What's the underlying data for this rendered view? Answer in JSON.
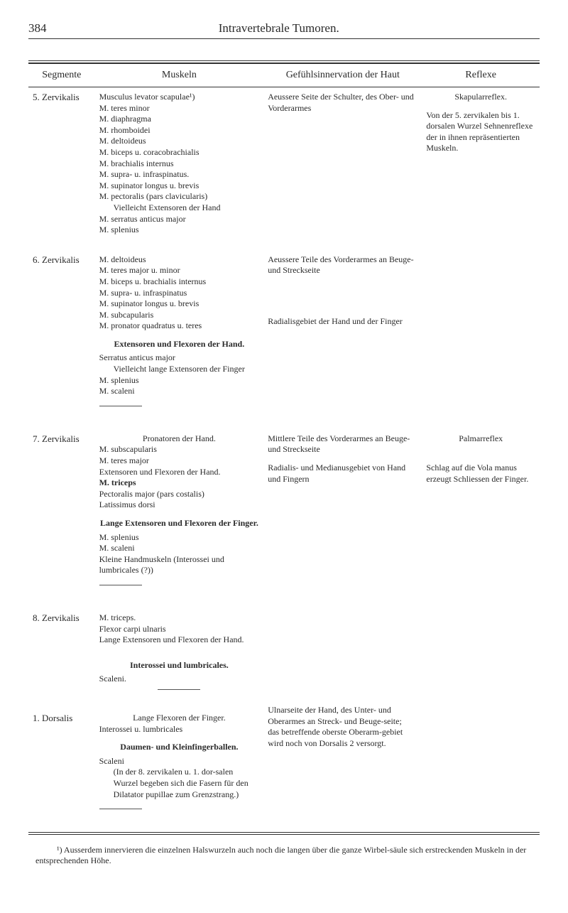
{
  "header": {
    "pageNumber": "384",
    "title": "Intravertebrale Tumoren."
  },
  "table": {
    "columns": [
      "Segmente",
      "Muskeln",
      "Gefühlsinnervation der Haut",
      "Reflexe"
    ],
    "rows": [
      {
        "segment": "5. Zervikalis",
        "muskeln": [
          {
            "type": "line",
            "text": "Musculus levator scapulae¹)"
          },
          {
            "type": "line",
            "text": "M. teres minor"
          },
          {
            "type": "line",
            "text": "M. diaphragma"
          },
          {
            "type": "line",
            "text": "M. rhomboidei"
          },
          {
            "type": "line",
            "text": "M. deltoideus"
          },
          {
            "type": "line",
            "text": "M. biceps u. coracobrachialis"
          },
          {
            "type": "line",
            "text": "M. brachialis internus"
          },
          {
            "type": "line",
            "text": "M. supra- u. infraspinatus."
          },
          {
            "type": "line",
            "text": "M. supinator longus u. brevis"
          },
          {
            "type": "line",
            "text": "M. pectoralis (pars clavicularis)"
          },
          {
            "type": "indent",
            "text": "Vielleicht Extensoren der Hand"
          },
          {
            "type": "line",
            "text": "M. serratus anticus major"
          },
          {
            "type": "line",
            "text": "M. splenius"
          }
        ],
        "haut": [
          {
            "type": "line",
            "text": "Aeussere Seite der Schulter, des Ober- und Vorderarmes"
          }
        ],
        "reflexe": [
          {
            "type": "center",
            "text": "Skapularreflex."
          },
          {
            "type": "spacer"
          },
          {
            "type": "line",
            "text": "Von der 5. zervikalen bis 1. dorsalen Wurzel Sehnenreflexe der in ihnen repräsentierten Muskeln."
          }
        ]
      },
      {
        "segment": "6. Zervikalis",
        "muskeln": [
          {
            "type": "line",
            "text": "M. deltoideus"
          },
          {
            "type": "line",
            "text": "M. teres major u. minor"
          },
          {
            "type": "line",
            "text": "M. biceps u. brachialis internus"
          },
          {
            "type": "line",
            "text": "M. supra- u. infraspinatus"
          },
          {
            "type": "line",
            "text": "M. supinator longus u. brevis"
          },
          {
            "type": "line",
            "text": "M. subcapularis"
          },
          {
            "type": "line",
            "text": "M. pronator quadratus u. teres"
          },
          {
            "type": "bold-heading",
            "text": "Extensoren und Flexoren der Hand."
          },
          {
            "type": "line",
            "text": "Serratus anticus major"
          },
          {
            "type": "indent",
            "text": "Vielleicht lange Extensoren der Finger"
          },
          {
            "type": "line",
            "text": "M. splenius"
          },
          {
            "type": "line",
            "text": "M. scaleni"
          },
          {
            "type": "rule"
          }
        ],
        "haut": [
          {
            "type": "line",
            "text": "Aeussere Teile des Vorderarmes an Beuge- und Streckseite"
          },
          {
            "type": "spacer3"
          },
          {
            "type": "line",
            "text": "Radialisgebiet der Hand und der Finger"
          }
        ],
        "reflexe": []
      },
      {
        "segment": "7. Zervikalis",
        "muskeln": [
          {
            "type": "center",
            "text": "Pronatoren der Hand."
          },
          {
            "type": "line",
            "text": "M. subscapularis"
          },
          {
            "type": "line",
            "text": "M. teres major"
          },
          {
            "type": "line",
            "text": "Extensoren und Flexoren der Hand."
          },
          {
            "type": "bold-line",
            "text": "M. triceps"
          },
          {
            "type": "line",
            "text": "Pectoralis major (pars costalis)"
          },
          {
            "type": "line",
            "text": "Latissimus dorsi"
          },
          {
            "type": "bold-heading",
            "text": "Lange Extensoren und Flexoren der Finger."
          },
          {
            "type": "line",
            "text": "M. splenius"
          },
          {
            "type": "line",
            "text": "M. scaleni"
          },
          {
            "type": "line",
            "text": "Kleine Handmuskeln (Interossei und lumbricales (?))"
          },
          {
            "type": "rule"
          }
        ],
        "haut": [
          {
            "type": "line",
            "text": "Mittlere Teile des Vorderarmes an Beuge- und Streckseite"
          },
          {
            "type": "spacer"
          },
          {
            "type": "line",
            "text": "Radialis- und Medianusgebiet von Hand und Fingern"
          }
        ],
        "reflexe": [
          {
            "type": "center",
            "text": "Palmarreflex"
          },
          {
            "type": "spacer2"
          },
          {
            "type": "line",
            "text": "Schlag auf die Vola manus erzeugt Schliessen der Finger."
          }
        ]
      },
      {
        "segment": "8. Zervikalis",
        "muskeln": [
          {
            "type": "line",
            "text": "M. triceps."
          },
          {
            "type": "line",
            "text": "Flexor carpi ulnaris"
          },
          {
            "type": "line",
            "text": "Lange Extensoren und Flexoren der Hand."
          },
          {
            "type": "spacer"
          },
          {
            "type": "bold-heading",
            "text": "Interossei und lumbricales."
          },
          {
            "type": "line",
            "text": "Scaleni."
          },
          {
            "type": "rule-center"
          }
        ],
        "haut": [],
        "hautBrace": true,
        "reflexe": []
      },
      {
        "segment": "1. Dorsalis",
        "muskeln": [
          {
            "type": "center",
            "text": "Lange Flexoren der Finger."
          },
          {
            "type": "line",
            "text": "Interossei u. lumbricales"
          },
          {
            "type": "bold-heading",
            "text": "Daumen- und Kleinfingerballen."
          },
          {
            "type": "line",
            "text": "Scaleni"
          },
          {
            "type": "indent",
            "text": "(In der 8. zervikalen u. 1. dor-salen Wurzel begeben sich die Fasern für den Dilatator pupillae zum Grenzstrang.)"
          },
          {
            "type": "rule"
          }
        ],
        "haut": [
          {
            "type": "line",
            "text": "Ulnarseite der Hand, des Unter- und Oberarmes an Streck- und Beuge-seite;"
          },
          {
            "type": "line",
            "text": "das betreffende oberste Oberarm-gebiet wird noch von Dorsalis 2 versorgt."
          }
        ],
        "reflexe": []
      }
    ]
  },
  "footnote": "¹) Ausserdem innervieren die einzelnen Halswurzeln auch noch die langen über die ganze Wirbel-säule sich erstreckenden Muskeln in der entsprechenden Höhe."
}
